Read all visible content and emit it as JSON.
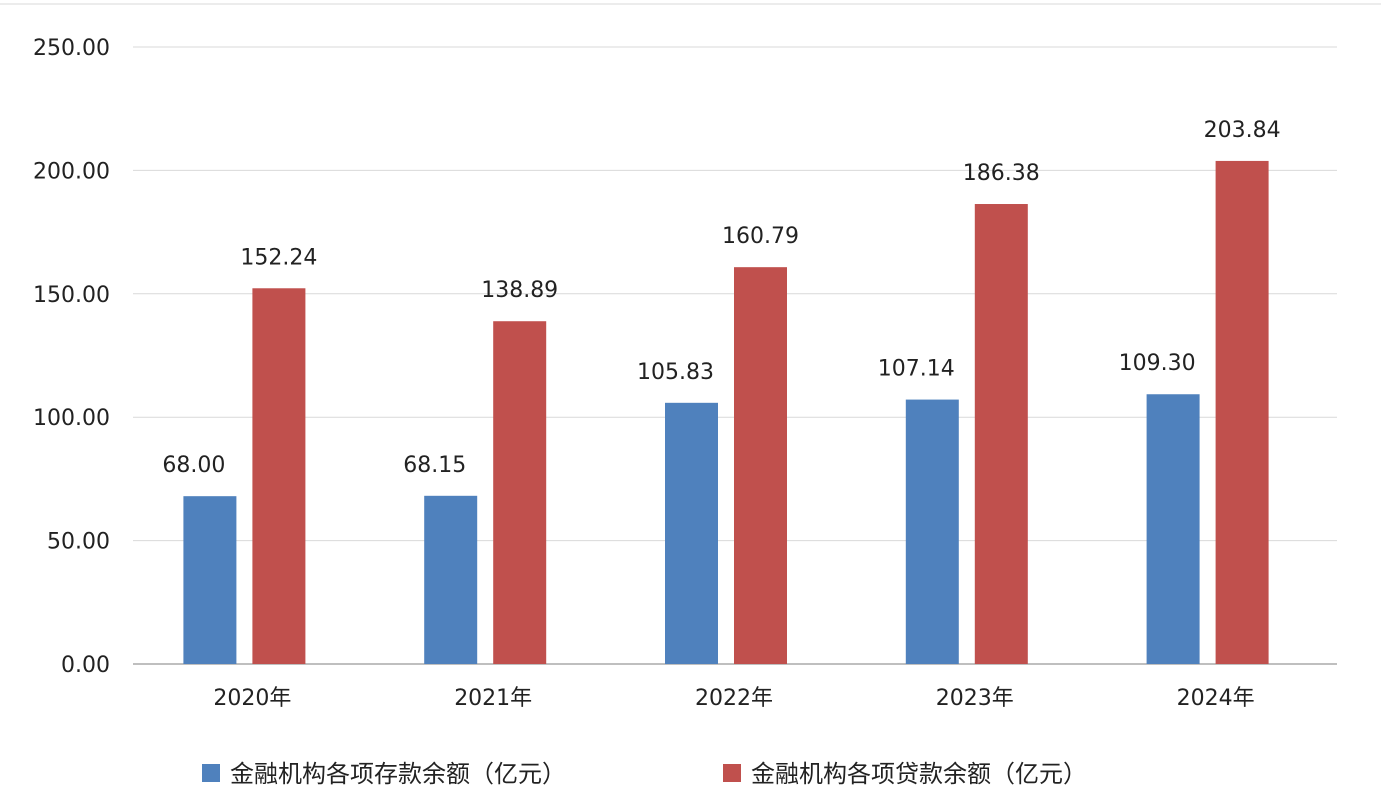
{
  "chart_data": {
    "type": "bar",
    "categories": [
      "2020年",
      "2021年",
      "2022年",
      "2023年",
      "2024年"
    ],
    "series": [
      {
        "name": "金融机构各项存款余额（亿元）",
        "values": [
          68.0,
          68.15,
          105.83,
          107.14,
          109.3
        ],
        "labels": [
          "68.00",
          "68.15",
          "105.83",
          "107.14",
          "109.30"
        ],
        "color": "#4f81bd"
      },
      {
        "name": "金融机构各项贷款余额（亿元）",
        "values": [
          152.24,
          138.89,
          160.79,
          186.38,
          203.84
        ],
        "labels": [
          "152.24",
          "138.89",
          "160.79",
          "186.38",
          "203.84"
        ],
        "color": "#c0504d"
      }
    ],
    "ylim": [
      0,
      250
    ],
    "yticks": [
      0,
      50,
      100,
      150,
      200,
      250
    ],
    "ytick_labels": [
      "0.00",
      "50.00",
      "100.00",
      "150.00",
      "200.00",
      "250.00"
    ],
    "grid": true,
    "legend": "bottom"
  }
}
